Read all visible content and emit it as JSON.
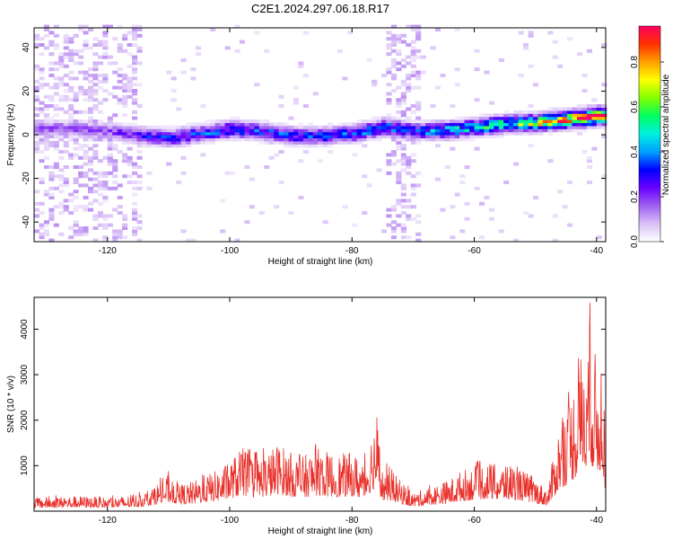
{
  "title": "C2E1.2024.297.06.18.R17",
  "chart_data": [
    {
      "type": "heatmap",
      "title": "",
      "xlabel": "Height of straight line (km)",
      "ylabel": "Frequency (Hz)",
      "xlim": [
        -132,
        -38.5
      ],
      "ylim": [
        -49,
        49
      ],
      "x_ticks": [
        -120,
        -100,
        -80,
        -60,
        -40
      ],
      "x_tick_labels": [
        "-120",
        "-100",
        "-80",
        "-60",
        "-40"
      ],
      "y_ticks": [
        -40,
        -20,
        0,
        20,
        40
      ],
      "y_tick_labels": [
        "-40",
        "-20",
        "0",
        "20",
        "40"
      ],
      "colorbar": {
        "label": "Normalized spectral amplitude",
        "range": [
          0,
          0.96
        ],
        "ticks": [
          0.0,
          0.2,
          0.4,
          0.6,
          0.8
        ],
        "tick_labels": [
          "0.0",
          "0.2",
          "0.4",
          "0.6",
          "0.8"
        ],
        "colormap": [
          "#ffffff",
          "#d9c0f7",
          "#a060f0",
          "#6a00ff",
          "#0000ff",
          "#00a0ff",
          "#00f0e0",
          "#00ff60",
          "#80ff00",
          "#ffff00",
          "#ffa000",
          "#ff3000",
          "#ff0060"
        ]
      },
      "ridge": [
        {
          "x": -131,
          "y": 2.5
        },
        {
          "x": -125,
          "y": 2.0
        },
        {
          "x": -120,
          "y": 1.0
        },
        {
          "x": -115,
          "y": -1.0
        },
        {
          "x": -110,
          "y": -2.0
        },
        {
          "x": -105,
          "y": 0.0
        },
        {
          "x": -100,
          "y": 2.0
        },
        {
          "x": -95,
          "y": 1.0
        },
        {
          "x": -90,
          "y": -1.0
        },
        {
          "x": -85,
          "y": -1.0
        },
        {
          "x": -80,
          "y": 0.0
        },
        {
          "x": -75,
          "y": 3.0
        },
        {
          "x": -70,
          "y": 1.0
        },
        {
          "x": -65,
          "y": 1.5
        },
        {
          "x": -60,
          "y": 3.0
        },
        {
          "x": -55,
          "y": 4.5
        },
        {
          "x": -50,
          "y": 5.0
        },
        {
          "x": -45,
          "y": 6.5
        },
        {
          "x": -40,
          "y": 8.0
        }
      ],
      "ridge_amplitude": [
        {
          "x": -131,
          "a": 0.2
        },
        {
          "x": -120,
          "a": 0.2
        },
        {
          "x": -115,
          "a": 0.3
        },
        {
          "x": -110,
          "a": 0.35
        },
        {
          "x": -100,
          "a": 0.4
        },
        {
          "x": -90,
          "a": 0.35
        },
        {
          "x": -80,
          "a": 0.4
        },
        {
          "x": -75,
          "a": 0.45
        },
        {
          "x": -70,
          "a": 0.4
        },
        {
          "x": -65,
          "a": 0.5
        },
        {
          "x": -60,
          "a": 0.55
        },
        {
          "x": -55,
          "a": 0.6
        },
        {
          "x": -50,
          "a": 0.75
        },
        {
          "x": -45,
          "a": 0.9
        },
        {
          "x": -40,
          "a": 0.96
        }
      ]
    },
    {
      "type": "line",
      "title": "",
      "xlabel": "Height of straight line (km)",
      "ylabel": "SNR (10 * v/v)",
      "xlim": [
        -132,
        -38.5
      ],
      "ylim": [
        0,
        4700
      ],
      "x_ticks": [
        -120,
        -100,
        -80,
        -60,
        -40
      ],
      "x_tick_labels": [
        "-120",
        "-100",
        "-80",
        "-60",
        "-40"
      ],
      "y_ticks": [
        1000,
        2000,
        3000,
        4000
      ],
      "y_tick_labels": [
        "1000",
        "2000",
        "3000",
        "4000"
      ],
      "color": "#e8302a",
      "series": [
        {
          "name": "",
          "x": [
            -132,
            -128,
            -124,
            -120,
            -117,
            -114,
            -112,
            -110,
            -108,
            -106,
            -104,
            -102,
            -100,
            -98,
            -96,
            -94,
            -92,
            -90,
            -88,
            -86,
            -84,
            -82,
            -80,
            -78,
            -76,
            -75,
            -74,
            -72,
            -70,
            -68,
            -66,
            -64,
            -62,
            -60,
            -58,
            -56,
            -54,
            -52,
            -50,
            -48,
            -46,
            -45,
            -44,
            -43,
            -42,
            -41,
            -40,
            -39,
            -38.5
          ],
          "y": [
            300,
            320,
            330,
            300,
            330,
            400,
            600,
            800,
            600,
            650,
            800,
            900,
            1100,
            1400,
            1200,
            1300,
            1500,
            1300,
            1200,
            1400,
            1300,
            1250,
            1300,
            1100,
            2200,
            900,
            1000,
            650,
            400,
            500,
            600,
            700,
            900,
            1000,
            1100,
            1000,
            1050,
            900,
            700,
            500,
            2000,
            2300,
            2700,
            3200,
            3900,
            4200,
            3300,
            3700,
            1200
          ]
        }
      ]
    }
  ]
}
